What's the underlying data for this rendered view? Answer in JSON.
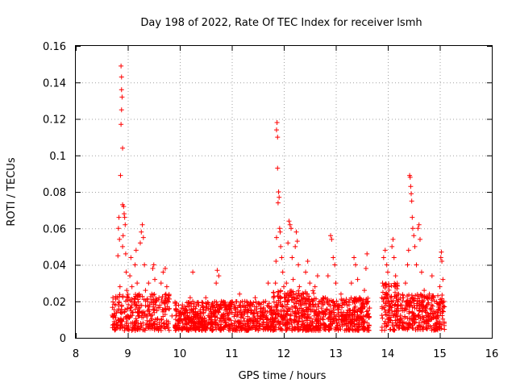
{
  "chart_data": {
    "type": "scatter",
    "title": "Day 198 of 2022, Rate Of TEC Index for receiver lsmh",
    "xlabel": "GPS time / hours",
    "ylabel": "ROTI / TECUs",
    "xlim": [
      8,
      16
    ],
    "ylim": [
      0,
      0.16
    ],
    "grid": true,
    "marker": "+",
    "color": "#ff0000",
    "xticks": [
      8,
      9,
      10,
      11,
      12,
      13,
      14,
      15,
      16
    ],
    "xtick_labels": [
      "8",
      "9",
      "10",
      "11",
      "12",
      "13",
      "14",
      "15",
      "16"
    ],
    "yticks": [
      0,
      0.02,
      0.04,
      0.06,
      0.08,
      0.1,
      0.12,
      0.14,
      0.16
    ],
    "ytick_labels": [
      "0",
      "0.02",
      "0.04",
      "0.06",
      "0.08",
      "0.1",
      "0.12",
      "0.14",
      "0.16"
    ],
    "series": [
      {
        "name": "ROTI",
        "points": [
          [
            8.75,
            0.012
          ],
          [
            8.77,
            0.018
          ],
          [
            8.78,
            0.008
          ],
          [
            8.8,
            0.022
          ],
          [
            8.81,
            0.045
          ],
          [
            8.82,
            0.06
          ],
          [
            8.83,
            0.066
          ],
          [
            8.84,
            0.054
          ],
          [
            8.85,
            0.028
          ],
          [
            8.86,
            0.014
          ],
          [
            8.87,
            0.01
          ],
          [
            8.87,
            0.149
          ],
          [
            8.88,
            0.143
          ],
          [
            8.88,
            0.136
          ],
          [
            8.89,
            0.132
          ],
          [
            8.88,
            0.125
          ],
          [
            8.87,
            0.117
          ],
          [
            8.9,
            0.104
          ],
          [
            8.86,
            0.089
          ],
          [
            8.9,
            0.073
          ],
          [
            8.92,
            0.072
          ],
          [
            8.93,
            0.068
          ],
          [
            8.94,
            0.066
          ],
          [
            8.95,
            0.062
          ],
          [
            8.91,
            0.056
          ],
          [
            8.9,
            0.05
          ],
          [
            8.96,
            0.046
          ],
          [
            8.97,
            0.036
          ],
          [
            8.98,
            0.026
          ],
          [
            8.99,
            0.016
          ],
          [
            9.0,
            0.012
          ],
          [
            9.02,
            0.022
          ],
          [
            9.04,
            0.034
          ],
          [
            9.06,
            0.044
          ],
          [
            9.08,
            0.028
          ],
          [
            9.1,
            0.014
          ],
          [
            9.12,
            0.02
          ],
          [
            9.14,
            0.04
          ],
          [
            9.16,
            0.048
          ],
          [
            9.18,
            0.03
          ],
          [
            9.2,
            0.012
          ],
          [
            9.22,
            0.024
          ],
          [
            9.24,
            0.052
          ],
          [
            9.26,
            0.058
          ],
          [
            9.28,
            0.062
          ],
          [
            9.3,
            0.055
          ],
          [
            9.32,
            0.04
          ],
          [
            9.34,
            0.026
          ],
          [
            9.36,
            0.012
          ],
          [
            9.38,
            0.02
          ],
          [
            9.4,
            0.03
          ],
          [
            9.42,
            0.018
          ],
          [
            9.44,
            0.012
          ],
          [
            9.46,
            0.024
          ],
          [
            9.48,
            0.038
          ],
          [
            9.5,
            0.04
          ],
          [
            9.52,
            0.032
          ],
          [
            9.54,
            0.018
          ],
          [
            9.56,
            0.01
          ],
          [
            9.6,
            0.022
          ],
          [
            9.64,
            0.03
          ],
          [
            9.68,
            0.036
          ],
          [
            9.72,
            0.038
          ],
          [
            9.75,
            0.028
          ],
          [
            9.8,
            0.016
          ],
          [
            9.85,
            0.012
          ],
          [
            10.0,
            0.012
          ],
          [
            10.05,
            0.018
          ],
          [
            10.1,
            0.01
          ],
          [
            10.15,
            0.014
          ],
          [
            10.2,
            0.022
          ],
          [
            10.25,
            0.036
          ],
          [
            10.3,
            0.016
          ],
          [
            10.35,
            0.008
          ],
          [
            10.4,
            0.012
          ],
          [
            10.45,
            0.014
          ],
          [
            10.5,
            0.022
          ],
          [
            10.55,
            0.016
          ],
          [
            10.6,
            0.01
          ],
          [
            10.65,
            0.018
          ],
          [
            10.7,
            0.03
          ],
          [
            10.72,
            0.037
          ],
          [
            10.75,
            0.034
          ],
          [
            10.8,
            0.02
          ],
          [
            10.85,
            0.012
          ],
          [
            10.9,
            0.016
          ],
          [
            10.95,
            0.01
          ],
          [
            11.0,
            0.014
          ],
          [
            11.05,
            0.018
          ],
          [
            11.1,
            0.012
          ],
          [
            11.15,
            0.024
          ],
          [
            11.2,
            0.012
          ],
          [
            11.25,
            0.02
          ],
          [
            11.3,
            0.014
          ],
          [
            11.35,
            0.01
          ],
          [
            11.4,
            0.018
          ],
          [
            11.45,
            0.022
          ],
          [
            11.5,
            0.012
          ],
          [
            11.55,
            0.016
          ],
          [
            11.6,
            0.01
          ],
          [
            11.65,
            0.02
          ],
          [
            11.7,
            0.03
          ],
          [
            11.75,
            0.014
          ],
          [
            11.8,
            0.022
          ],
          [
            11.84,
            0.03
          ],
          [
            11.85,
            0.042
          ],
          [
            11.86,
            0.055
          ],
          [
            11.87,
            0.118
          ],
          [
            11.86,
            0.114
          ],
          [
            11.88,
            0.11
          ],
          [
            11.88,
            0.093
          ],
          [
            11.9,
            0.08
          ],
          [
            11.91,
            0.077
          ],
          [
            11.89,
            0.074
          ],
          [
            11.92,
            0.06
          ],
          [
            11.93,
            0.058
          ],
          [
            11.94,
            0.05
          ],
          [
            11.96,
            0.044
          ],
          [
            11.98,
            0.036
          ],
          [
            12.0,
            0.028
          ],
          [
            12.02,
            0.02
          ],
          [
            12.05,
            0.03
          ],
          [
            12.08,
            0.052
          ],
          [
            12.1,
            0.064
          ],
          [
            12.12,
            0.062
          ],
          [
            12.14,
            0.06
          ],
          [
            12.16,
            0.044
          ],
          [
            12.18,
            0.032
          ],
          [
            12.2,
            0.022
          ],
          [
            12.22,
            0.05
          ],
          [
            12.24,
            0.058
          ],
          [
            12.26,
            0.053
          ],
          [
            12.28,
            0.04
          ],
          [
            12.3,
            0.028
          ],
          [
            12.34,
            0.018
          ],
          [
            12.38,
            0.024
          ],
          [
            12.42,
            0.036
          ],
          [
            12.46,
            0.042
          ],
          [
            12.5,
            0.03
          ],
          [
            12.55,
            0.02
          ],
          [
            12.6,
            0.028
          ],
          [
            12.65,
            0.034
          ],
          [
            12.7,
            0.02
          ],
          [
            12.75,
            0.014
          ],
          [
            12.8,
            0.022
          ],
          [
            12.85,
            0.034
          ],
          [
            12.9,
            0.056
          ],
          [
            12.92,
            0.054
          ],
          [
            12.95,
            0.044
          ],
          [
            12.98,
            0.04
          ],
          [
            13.0,
            0.03
          ],
          [
            13.05,
            0.018
          ],
          [
            13.1,
            0.024
          ],
          [
            13.15,
            0.014
          ],
          [
            13.2,
            0.02
          ],
          [
            13.25,
            0.012
          ],
          [
            13.3,
            0.03
          ],
          [
            13.35,
            0.044
          ],
          [
            13.38,
            0.04
          ],
          [
            13.42,
            0.032
          ],
          [
            13.46,
            0.022
          ],
          [
            13.5,
            0.014
          ],
          [
            13.55,
            0.026
          ],
          [
            13.58,
            0.038
          ],
          [
            13.6,
            0.046
          ],
          [
            13.62,
            0.02
          ],
          [
            13.9,
            0.03
          ],
          [
            13.92,
            0.044
          ],
          [
            13.95,
            0.048
          ],
          [
            13.98,
            0.04
          ],
          [
            14.0,
            0.036
          ],
          [
            14.02,
            0.028
          ],
          [
            14.05,
            0.022
          ],
          [
            14.08,
            0.05
          ],
          [
            14.1,
            0.054
          ],
          [
            14.12,
            0.044
          ],
          [
            14.15,
            0.034
          ],
          [
            14.2,
            0.024
          ],
          [
            14.25,
            0.016
          ],
          [
            14.3,
            0.022
          ],
          [
            14.34,
            0.03
          ],
          [
            14.38,
            0.04
          ],
          [
            14.4,
            0.048
          ],
          [
            14.42,
            0.089
          ],
          [
            14.43,
            0.088
          ],
          [
            14.44,
            0.083
          ],
          [
            14.45,
            0.079
          ],
          [
            14.46,
            0.075
          ],
          [
            14.47,
            0.066
          ],
          [
            14.48,
            0.06
          ],
          [
            14.5,
            0.056
          ],
          [
            14.52,
            0.05
          ],
          [
            14.55,
            0.04
          ],
          [
            14.58,
            0.06
          ],
          [
            14.6,
            0.062
          ],
          [
            14.62,
            0.054
          ],
          [
            14.65,
            0.036
          ],
          [
            14.7,
            0.026
          ],
          [
            14.75,
            0.018
          ],
          [
            14.8,
            0.024
          ],
          [
            14.85,
            0.034
          ],
          [
            14.9,
            0.02
          ],
          [
            14.95,
            0.014
          ],
          [
            15.0,
            0.028
          ],
          [
            15.02,
            0.044
          ],
          [
            15.03,
            0.047
          ],
          [
            15.04,
            0.042
          ],
          [
            15.06,
            0.032
          ],
          [
            15.08,
            0.02
          ]
        ],
        "bands": [
          {
            "x0": 8.7,
            "x1": 9.8,
            "y0": 0.004,
            "y1": 0.024,
            "n": 300
          },
          {
            "x0": 9.9,
            "x1": 11.8,
            "y0": 0.004,
            "y1": 0.02,
            "n": 650
          },
          {
            "x0": 11.8,
            "x1": 12.6,
            "y0": 0.004,
            "y1": 0.026,
            "n": 320
          },
          {
            "x0": 12.6,
            "x1": 13.65,
            "y0": 0.004,
            "y1": 0.022,
            "n": 380
          },
          {
            "x0": 13.88,
            "x1": 14.2,
            "y0": 0.004,
            "y1": 0.03,
            "n": 120
          },
          {
            "x0": 14.2,
            "x1": 15.1,
            "y0": 0.004,
            "y1": 0.024,
            "n": 300
          }
        ]
      }
    ]
  }
}
